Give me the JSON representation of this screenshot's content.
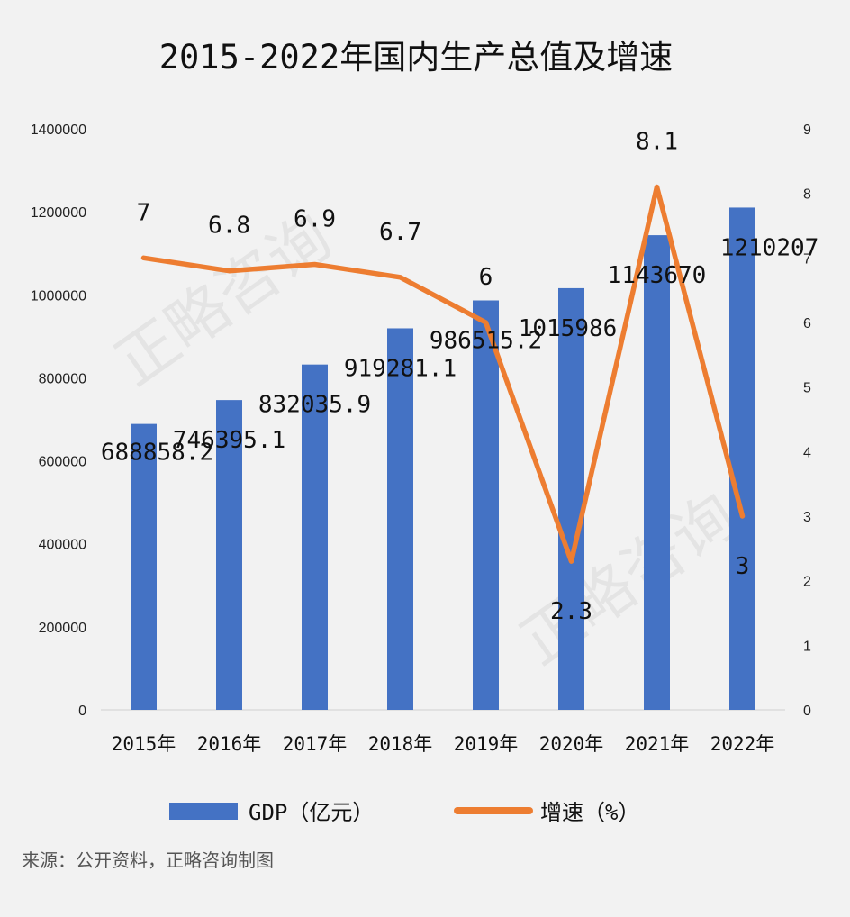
{
  "chart_data": {
    "type": "bar",
    "title": "2015-2022年国内生产总值及增速",
    "categories": [
      "2015年",
      "2016年",
      "2017年",
      "2018年",
      "2019年",
      "2020年",
      "2021年",
      "2022年"
    ],
    "series": [
      {
        "name": "GDP（亿元）",
        "type": "bar",
        "axis": "left",
        "color": "#4472c4",
        "values": [
          688858.2,
          746395.1,
          832035.9,
          919281.1,
          986515.2,
          1015986,
          1143670,
          1210207
        ],
        "labels": [
          "688858.2",
          "746395.1",
          "832035.9",
          "919281.1",
          "986515.2",
          "1015986",
          "1143670",
          "1210207"
        ]
      },
      {
        "name": "增速（%）",
        "type": "line",
        "axis": "right",
        "color": "#ed7d31",
        "values": [
          7,
          6.8,
          6.9,
          6.7,
          6,
          2.3,
          8.1,
          3
        ],
        "labels": [
          "7",
          "6.8",
          "6.9",
          "6.7",
          "6",
          "2.3",
          "8.1",
          "3"
        ]
      }
    ],
    "y_left": {
      "min": 0,
      "max": 1400000,
      "ticks": [
        "0",
        "200000",
        "400000",
        "600000",
        "800000",
        "1000000",
        "1200000",
        "1400000"
      ]
    },
    "y_right": {
      "min": 0,
      "max": 9,
      "ticks": [
        "0",
        "1",
        "2",
        "3",
        "4",
        "5",
        "6",
        "7",
        "8",
        "9"
      ]
    },
    "grid": false,
    "legend": "bottom"
  },
  "source": "来源：公开资料，正略咨询制图",
  "watermark": "正略咨询"
}
